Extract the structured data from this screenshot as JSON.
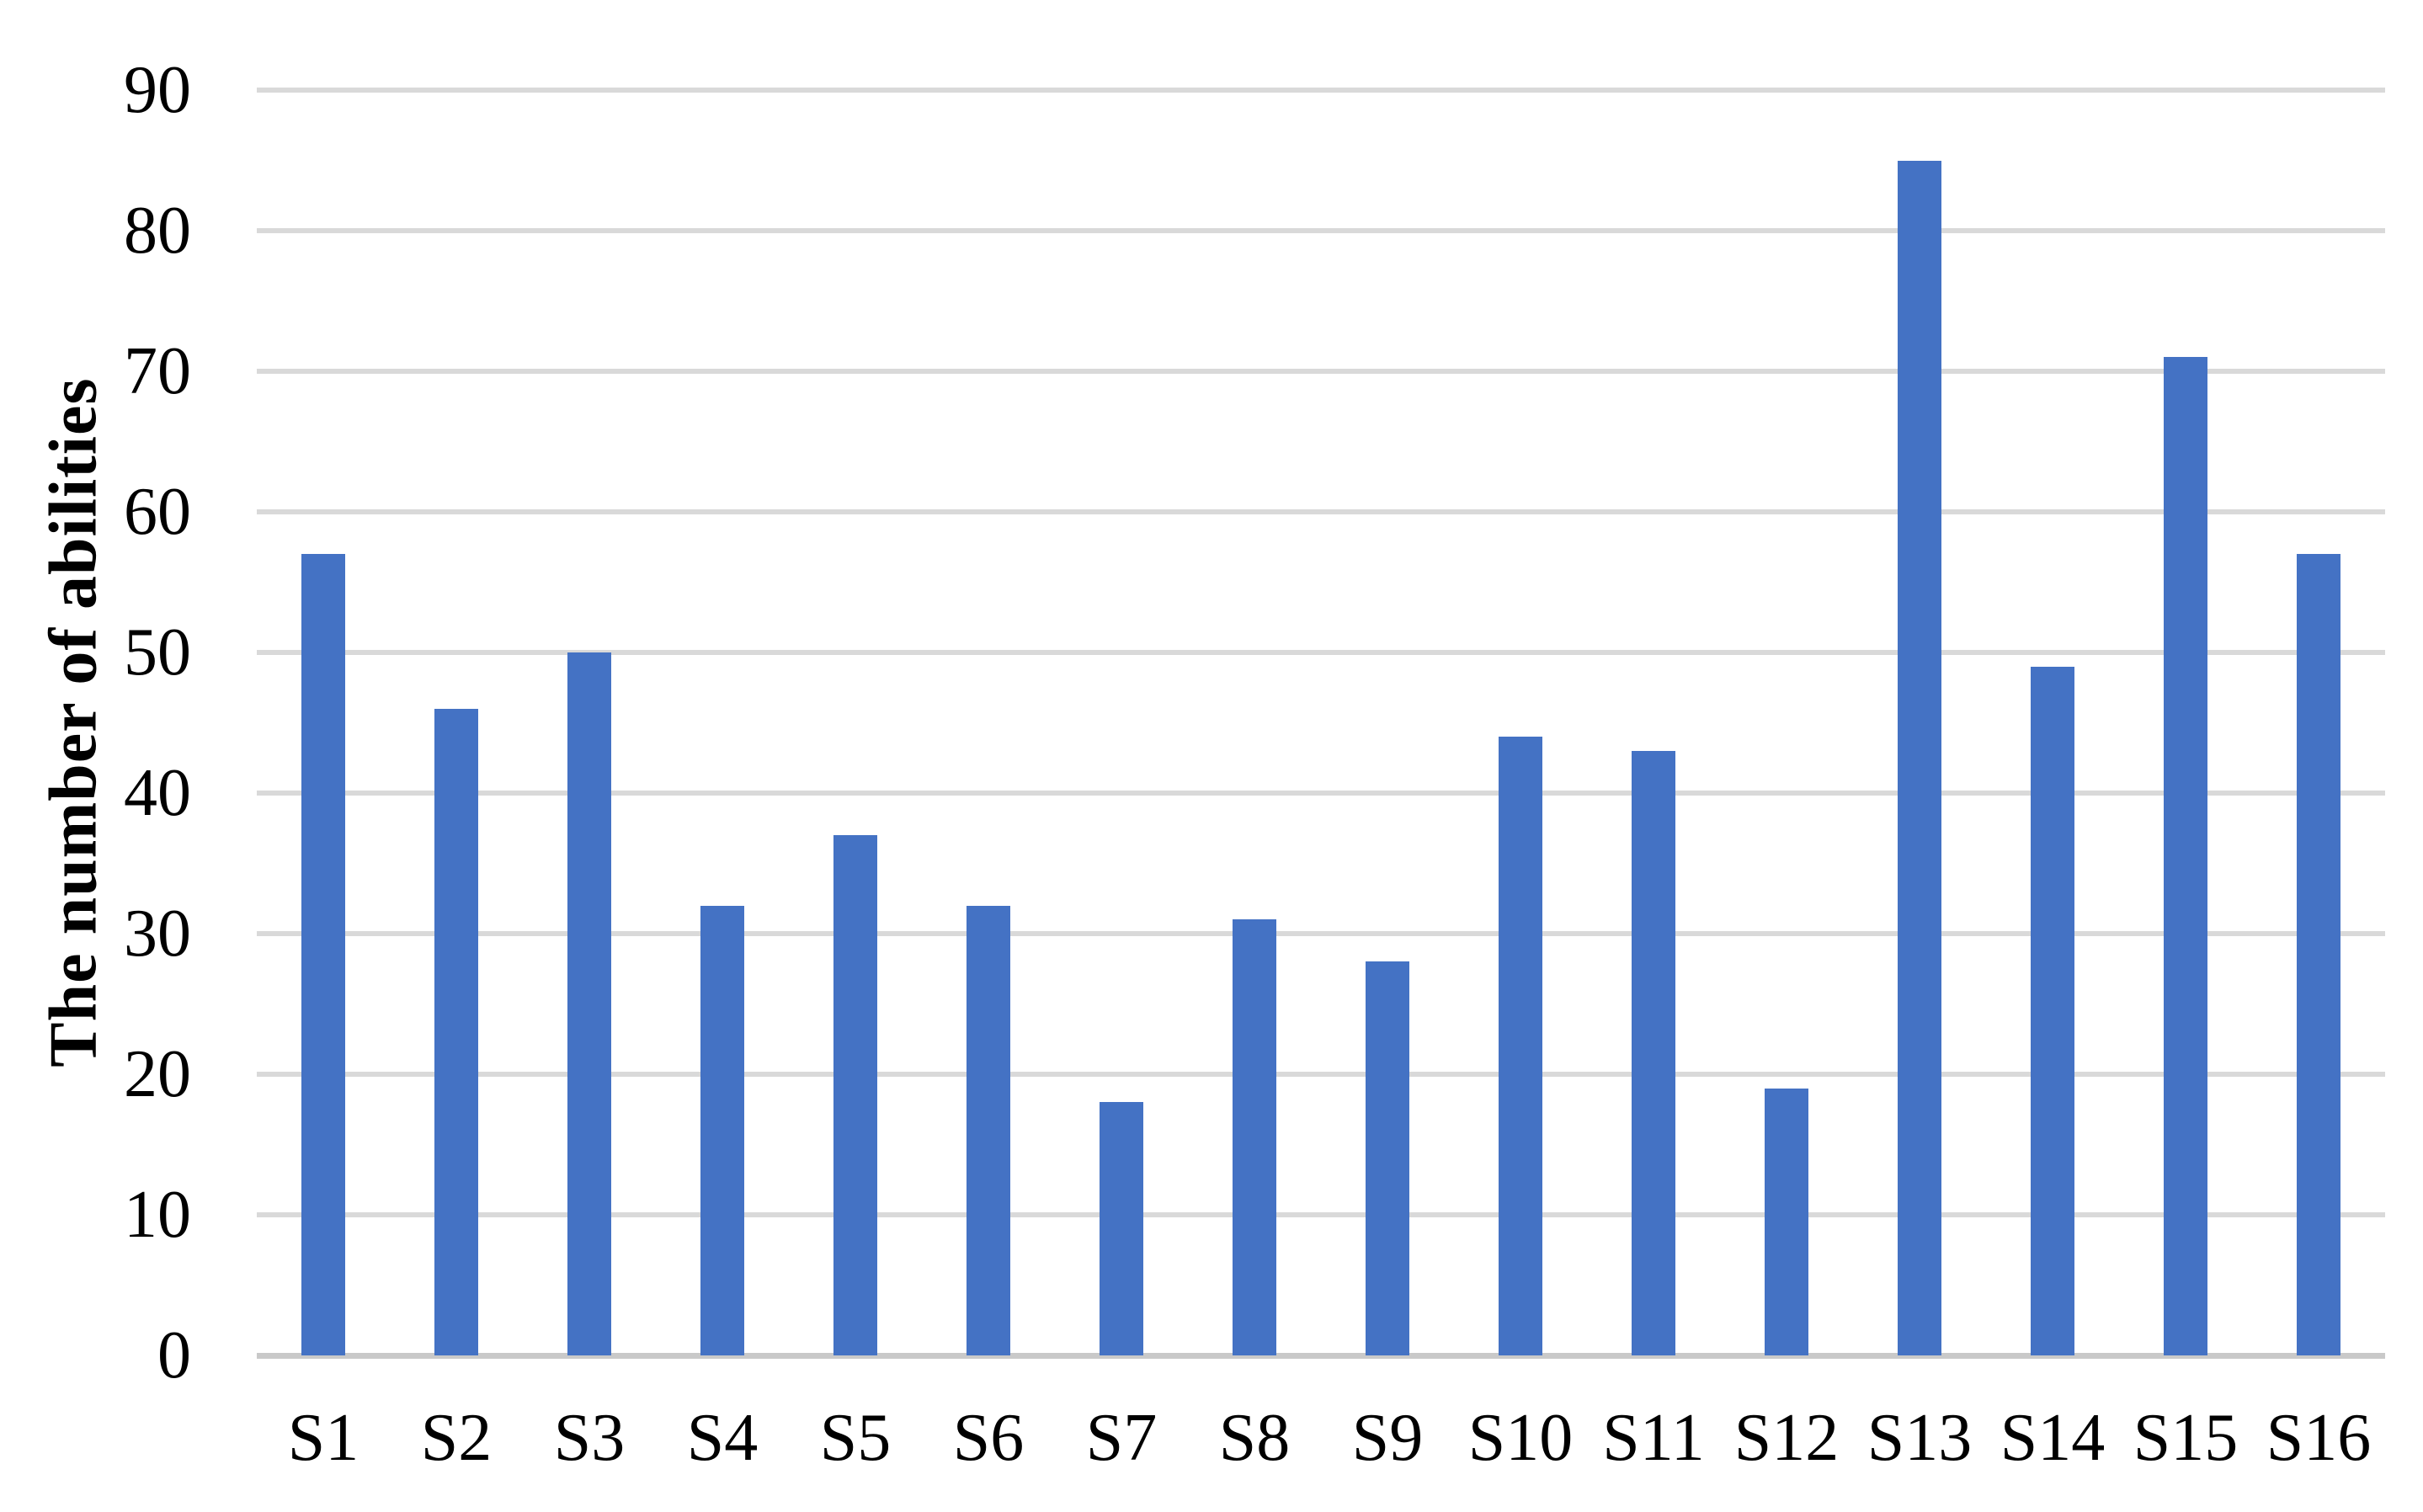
{
  "chart_data": {
    "type": "bar",
    "title": "",
    "xlabel": "",
    "ylabel": "The number of abilities",
    "categories": [
      "S1",
      "S2",
      "S3",
      "S4",
      "S5",
      "S6",
      "S7",
      "S8",
      "S9",
      "S10",
      "S11",
      "S12",
      "S13",
      "S14",
      "S15",
      "S16"
    ],
    "values": [
      57,
      46,
      50,
      32,
      37,
      32,
      18,
      31,
      28,
      44,
      43,
      19,
      85,
      49,
      71,
      57
    ],
    "series": [
      {
        "name": "The number of abilities",
        "values": [
          57,
          46,
          50,
          32,
          37,
          32,
          18,
          31,
          28,
          44,
          43,
          19,
          85,
          49,
          71,
          57
        ]
      }
    ],
    "ylim": [
      0,
      90
    ],
    "yticks": [
      0,
      10,
      20,
      30,
      40,
      50,
      60,
      70,
      80,
      90
    ],
    "grid": true,
    "legend_position": "none",
    "colors": {
      "bar": "#4472C4",
      "gridline": "#D9D9D9",
      "axis_line": "#C9C9C9",
      "text": "#000000",
      "background": "#FFFFFF"
    }
  }
}
